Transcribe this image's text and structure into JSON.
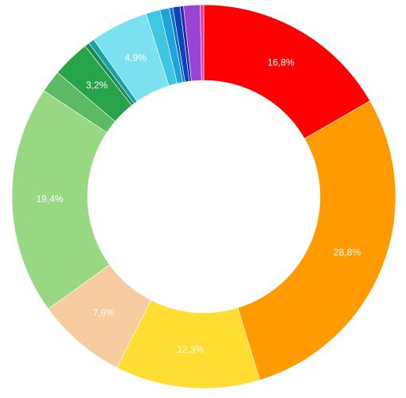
{
  "chart_data": {
    "type": "pie",
    "variant": "donut",
    "value_unit": "percent",
    "decimal_separator": ",",
    "slices": [
      {
        "value": 16.8,
        "color": "#ff0000",
        "label": "16,8%"
      },
      {
        "value": 28.8,
        "color": "#ff9a00",
        "label": "28,8%"
      },
      {
        "value": 12.3,
        "color": "#ffdd33",
        "label": "12,3%"
      },
      {
        "value": 7.6,
        "color": "#f7cba0",
        "label": "7,6%"
      },
      {
        "value": 19.4,
        "color": "#98d883",
        "label": "19,4%"
      },
      {
        "value": 1.9,
        "color": "#5dba64",
        "label": ""
      },
      {
        "value": 3.2,
        "color": "#27a349",
        "label": "3,2%"
      },
      {
        "value": 0.4,
        "color": "#1e8a50",
        "label": ""
      },
      {
        "value": 0.5,
        "color": "#17a2a8",
        "label": ""
      },
      {
        "value": 4.9,
        "color": "#7be1f1",
        "label": "4,9%"
      },
      {
        "value": 1.2,
        "color": "#3fc6e0",
        "label": ""
      },
      {
        "value": 0.8,
        "color": "#1ea4d8",
        "label": ""
      },
      {
        "value": 0.3,
        "color": "#0d73c7",
        "label": ""
      },
      {
        "value": 0.6,
        "color": "#0b43b8",
        "label": ""
      },
      {
        "value": 0.3,
        "color": "#2a2aa8",
        "label": ""
      },
      {
        "value": 1.4,
        "color": "#9a44d6",
        "label": ""
      },
      {
        "value": 0.3,
        "color": "#e33fa8",
        "label": ""
      }
    ],
    "start_angle_deg": 0,
    "direction": "clockwise",
    "label_color": "#ffffff",
    "legend": "none"
  }
}
